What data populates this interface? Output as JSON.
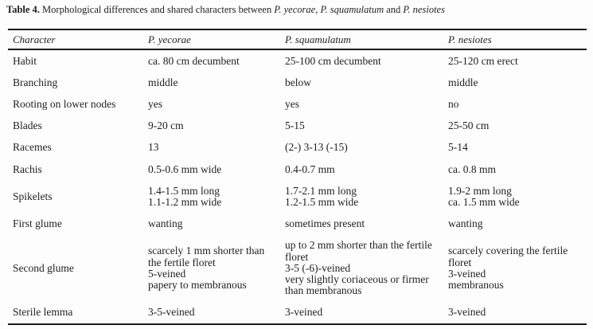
{
  "page": {
    "background_color": "#fdfdfd",
    "text_color": "#1f1f1f",
    "rule_color": "#1a1a1a"
  },
  "title": {
    "label": "Table 4.",
    "lead": " Morphological differences and shared characters between ",
    "species_1": "P. yecorae",
    "sep_1": ", ",
    "species_2": "P. squamulatum",
    "sep_2": " and ",
    "species_3": "P. nesiotes"
  },
  "table": {
    "headers": [
      "Character",
      "P. yecorae",
      "P. squamulatum",
      "P. nesiotes"
    ],
    "rows": [
      {
        "character": "Habit",
        "cells": [
          "ca. 80 cm decumbent",
          "25-100 cm decumbent",
          "25-120 cm erect"
        ]
      },
      {
        "character": "Branching",
        "cells": [
          "middle",
          "below",
          "middle"
        ]
      },
      {
        "character": "Rooting on lower nodes",
        "cells": [
          "yes",
          "yes",
          "no"
        ]
      },
      {
        "character": "Blades",
        "cells": [
          "9-20 cm",
          "5-15",
          "25-50 cm"
        ]
      },
      {
        "character": "Racemes",
        "cells": [
          "13",
          "(2-) 3-13 (-15)",
          "5-14"
        ]
      },
      {
        "character": "Rachis",
        "cells": [
          "0.5-0.6 mm wide",
          "0.4-0.7 mm",
          "ca. 0.8 mm"
        ]
      },
      {
        "character": "Spikelets",
        "cells": [
          [
            "1.4-1.5 mm long",
            "1.1-1.2 mm wide"
          ],
          [
            "1.7-2.1 mm long",
            "1.2-1.5 mm wide"
          ],
          [
            "1.9-2 mm long",
            "ca. 1.5 mm wide"
          ]
        ]
      },
      {
        "character": "First glume",
        "cells": [
          "wanting",
          "sometimes present",
          "wanting"
        ]
      },
      {
        "character": "Second glume",
        "cells": [
          [
            "scarcely 1 mm shorter than the fertile floret",
            "5-veined",
            "papery to membranous"
          ],
          [
            "up to 2 mm shorter than the fertile floret",
            "3-5 (-6)-veined",
            "very slightly coriaceous or firmer than membranous"
          ],
          [
            "scarcely covering the fertile floret",
            "3-veined",
            "membranous"
          ]
        ]
      },
      {
        "character": "Sterile lemma",
        "cells": [
          "3-5-veined",
          "3-veined",
          "3-veined"
        ]
      }
    ]
  }
}
